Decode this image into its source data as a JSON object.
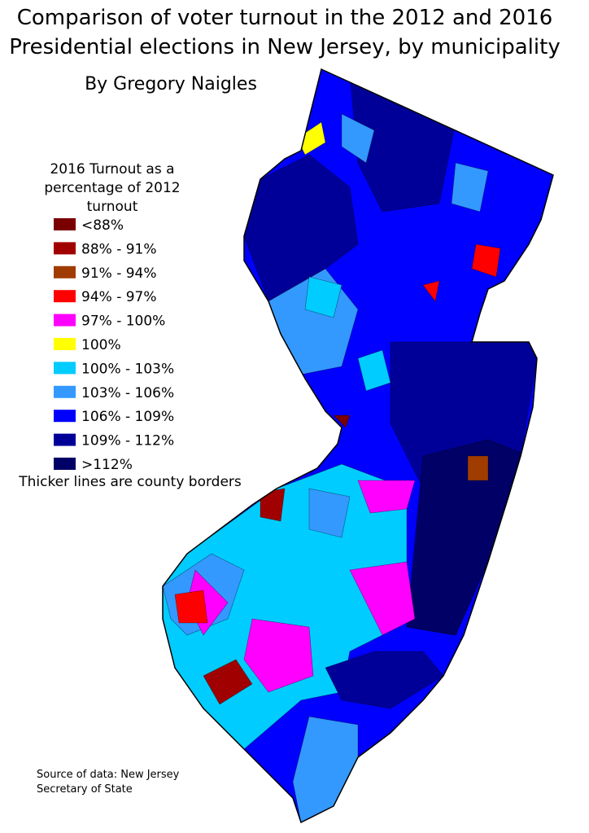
{
  "title": {
    "lines": [
      "Comparison of voter turnout in the 2012 and 2016",
      "Presidential elections in New Jersey, by municipality"
    ]
  },
  "author": "By Gregory Naigles",
  "legend": {
    "title_lines": [
      "2016 Turnout as a",
      "percentage of 2012",
      "turnout"
    ],
    "items": [
      {
        "label": "<88%",
        "color": "#7a0000"
      },
      {
        "label": "88% - 91%",
        "color": "#a00000"
      },
      {
        "label": "91% - 94%",
        "color": "#a03c00"
      },
      {
        "label": "94% - 97%",
        "color": "#ff0000"
      },
      {
        "label": "97% - 100%",
        "color": "#ff00ff"
      },
      {
        "label": "100%",
        "color": "#ffff00"
      },
      {
        "label": "100% - 103%",
        "color": "#00ccff"
      },
      {
        "label": "103% - 106%",
        "color": "#3399ff"
      },
      {
        "label": "106% - 109%",
        "color": "#0000ff"
      },
      {
        "label": "109% - 112%",
        "color": "#000099"
      },
      {
        "label": ">112%",
        "color": "#000066"
      }
    ]
  },
  "note": "Thicker lines are county borders",
  "source": {
    "lines": [
      "Source of data: New Jersey",
      "Secretary of State"
    ]
  }
}
